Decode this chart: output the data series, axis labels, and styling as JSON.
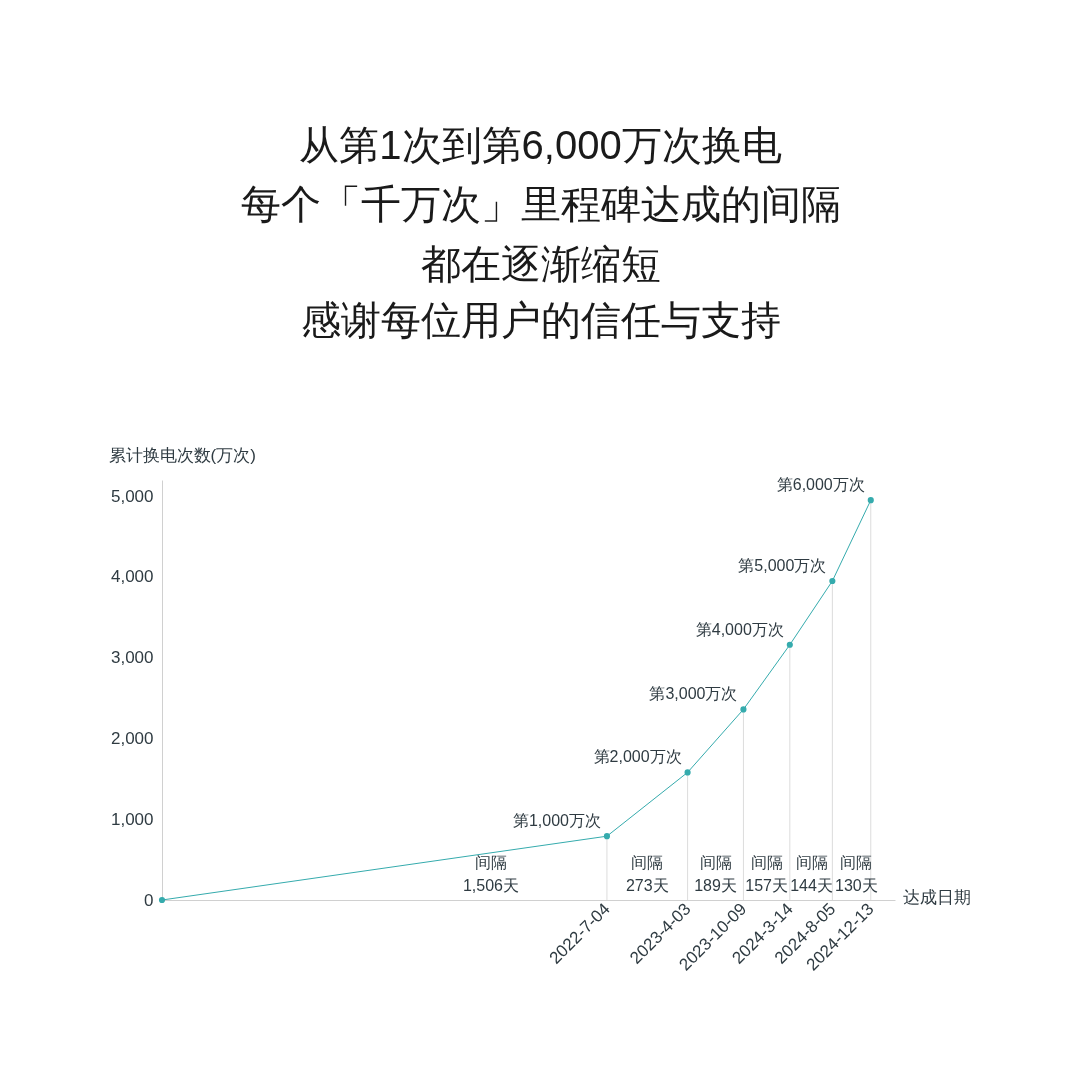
{
  "chart_data": {
    "type": "line",
    "title": "从第1次到第6,000万次换电",
    "subtitle": "每个「千万次」里程碑达成的间隔都在逐渐缩短",
    "xlabel": "达成日期",
    "ylabel": "累计换电次数(万次)",
    "x": [
      "2018-05-20",
      "2022-07-04",
      "2023-04-03",
      "2023-10-09",
      "2024-03-14",
      "2024-08-05",
      "2024-12-13"
    ],
    "values": [
      0,
      790,
      1580,
      2360,
      3160,
      3950,
      4950
    ],
    "color": "#35abad",
    "marker": "circle",
    "line_style": "solid",
    "grid": false,
    "xlim": [
      "2018-05-20",
      "2025-03-05"
    ],
    "xticks": [
      {
        "value": "2022-07-04",
        "label": "2022-7-04"
      },
      {
        "value": "2023-04-03",
        "label": "2023-4-03"
      },
      {
        "value": "2023-10-09",
        "label": "2023-10-09"
      },
      {
        "value": "2024-03-14",
        "label": "2024-3-14"
      },
      {
        "value": "2024-08-05",
        "label": "2024-8-05"
      },
      {
        "value": "2024-12-13",
        "label": "2024-12-13"
      }
    ],
    "ylim": [
      0,
      5200
    ],
    "yticks": [
      0,
      {
        "value": 1000,
        "label": "1,000"
      },
      {
        "value": 2000,
        "label": "2,000"
      },
      {
        "value": 3000,
        "label": "3,000"
      },
      {
        "value": 4000,
        "label": "4,000"
      },
      {
        "value": 5000,
        "label": "5,000"
      }
    ],
    "ref_lines": [
      {
        "axis": "x",
        "value": "2022-07-04",
        "color": "#dcdcdc"
      },
      {
        "axis": "x",
        "value": "2023-04-03",
        "color": "#dcdcdc"
      },
      {
        "axis": "x",
        "value": "2023-10-09",
        "color": "#dcdcdc"
      },
      {
        "axis": "x",
        "value": "2024-03-14",
        "color": "#dcdcdc"
      },
      {
        "axis": "x",
        "value": "2024-08-05",
        "color": "#dcdcdc"
      },
      {
        "axis": "x",
        "value": "2024-12-13",
        "color": "#dcdcdc"
      }
    ],
    "annotations": [
      "感谢每位用户的信任与支持",
      {
        "text": "第1,000万次",
        "x": "2022-07-04",
        "y": 790
      },
      {
        "text": "第2,000万次",
        "x": "2023-04-03",
        "y": 1580
      },
      {
        "text": "第3,000万次",
        "x": "2023-10-09",
        "y": 2360
      },
      {
        "text": "第4,000万次",
        "x": "2024-03-14",
        "y": 3160
      },
      {
        "text": "第5,000万次",
        "x": "2024-08-05",
        "y": 3950
      },
      {
        "text": "第6,000万次",
        "x": "2024-12-13",
        "y": 4950
      },
      "间隔1,506天",
      "间隔273天",
      "间隔189天",
      "间隔157天",
      "间隔144天",
      "间隔130天"
    ]
  }
}
